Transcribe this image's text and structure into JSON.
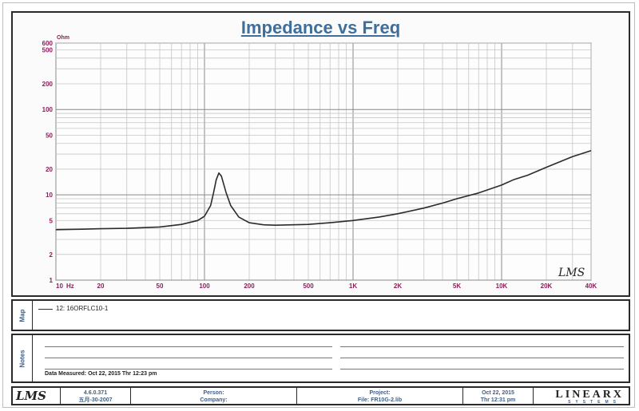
{
  "chart_data": {
    "type": "line",
    "title": "Impedance vs Freq",
    "x_scale": "log",
    "y_scale": "log",
    "xlim": [
      10,
      40000
    ],
    "ylim": [
      1,
      600
    ],
    "y_unit": "Ohm",
    "x_unit": "Hz",
    "grid": true,
    "x_ticks": [
      {
        "value": 10,
        "label": "10"
      },
      {
        "value": 20,
        "label": "20"
      },
      {
        "value": 50,
        "label": "50"
      },
      {
        "value": 100,
        "label": "100"
      },
      {
        "value": 200,
        "label": "200"
      },
      {
        "value": 500,
        "label": "500"
      },
      {
        "value": 1000,
        "label": "1K"
      },
      {
        "value": 2000,
        "label": "2K"
      },
      {
        "value": 5000,
        "label": "5K"
      },
      {
        "value": 10000,
        "label": "10K"
      },
      {
        "value": 20000,
        "label": "20K"
      },
      {
        "value": 40000,
        "label": "40K"
      }
    ],
    "y_ticks": [
      {
        "value": 1,
        "label": "1"
      },
      {
        "value": 2,
        "label": "2"
      },
      {
        "value": 5,
        "label": "5"
      },
      {
        "value": 10,
        "label": "10"
      },
      {
        "value": 20,
        "label": "20"
      },
      {
        "value": 50,
        "label": "50"
      },
      {
        "value": 100,
        "label": "100"
      },
      {
        "value": 200,
        "label": "200"
      },
      {
        "value": 500,
        "label": "500"
      },
      {
        "value": 600,
        "label": "600"
      }
    ],
    "series": [
      {
        "name": "12: 16ORFLC10-1",
        "color": "#2b2b2b",
        "x": [
          10,
          15,
          20,
          30,
          50,
          70,
          90,
          100,
          110,
          115,
          120,
          125,
          130,
          140,
          150,
          170,
          200,
          250,
          300,
          500,
          700,
          1000,
          1500,
          2000,
          3000,
          4000,
          5000,
          7000,
          10000,
          12000,
          15000,
          20000,
          30000,
          40000
        ],
        "y": [
          3.9,
          3.95,
          4.0,
          4.05,
          4.2,
          4.5,
          5.0,
          5.6,
          7.5,
          10.5,
          15.0,
          18.0,
          16.5,
          10.5,
          7.5,
          5.5,
          4.7,
          4.45,
          4.4,
          4.5,
          4.7,
          5.0,
          5.5,
          6.0,
          7.0,
          8.0,
          9.0,
          10.5,
          13.0,
          15.0,
          17.0,
          21.0,
          28.0,
          33.0
        ]
      }
    ]
  },
  "logo_mark": "LMS",
  "map_panel": {
    "label": "Map",
    "legend_entry": "12: 16ORFLC10-1"
  },
  "notes_panel": {
    "label": "Notes",
    "date_measured": "Data Measured: Oct 22, 2015  Thr  12:23 pm"
  },
  "footer": {
    "logo": "LMS",
    "version": "4.6.0.371",
    "version_date": "五月-30-2007",
    "person_label": "Person:",
    "company_label": "Company:",
    "project_label": "Project:",
    "file_label": "File: FR10G-2.lib",
    "date": "Oct 22, 2015",
    "time": "Thr 12:31 pm",
    "brand": "LINEARX",
    "brand_sub": "SYSTEMS"
  }
}
